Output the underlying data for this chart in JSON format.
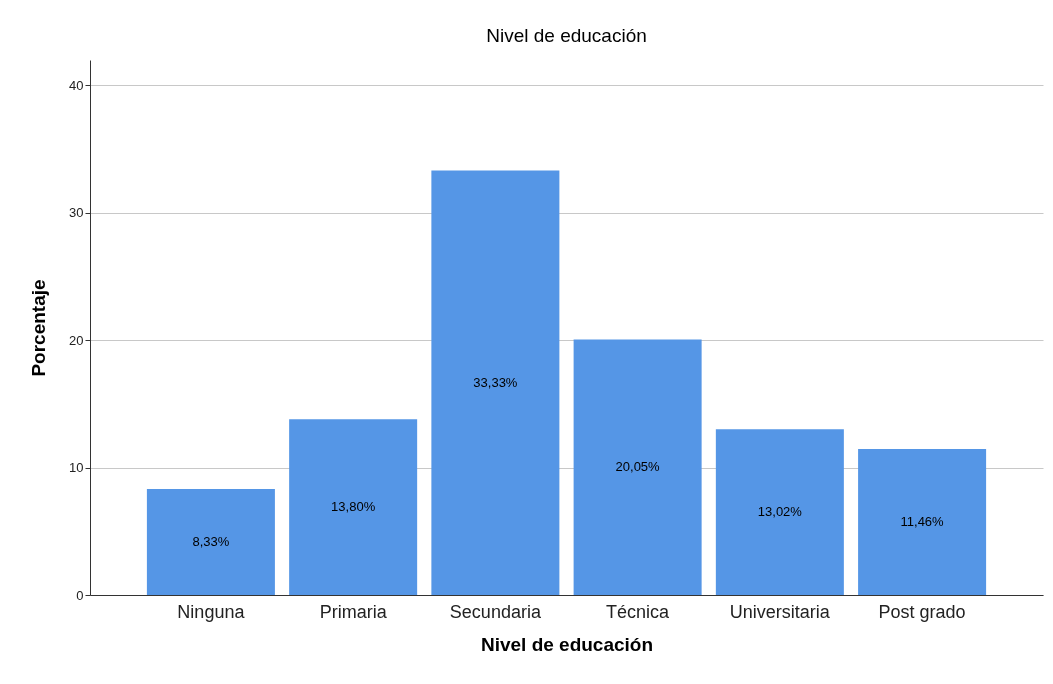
{
  "chart_data": {
    "type": "bar",
    "title": "Nivel de educación",
    "xlabel": "Nivel de educación",
    "ylabel": "Porcentaje",
    "categories": [
      "Ninguna",
      "Primaria",
      "Secundaria",
      "Técnica",
      "Universitaria",
      "Post grado"
    ],
    "values": [
      8.33,
      13.8,
      33.33,
      20.05,
      13.02,
      11.46
    ],
    "value_labels": [
      "8,33%",
      "13,80%",
      "33,33%",
      "20,05%",
      "13,02%",
      "11,46%"
    ],
    "color": "#5596e6",
    "ylim": [
      0,
      42
    ],
    "yticks": [
      0,
      10,
      20,
      30,
      40
    ],
    "grid": "y"
  }
}
